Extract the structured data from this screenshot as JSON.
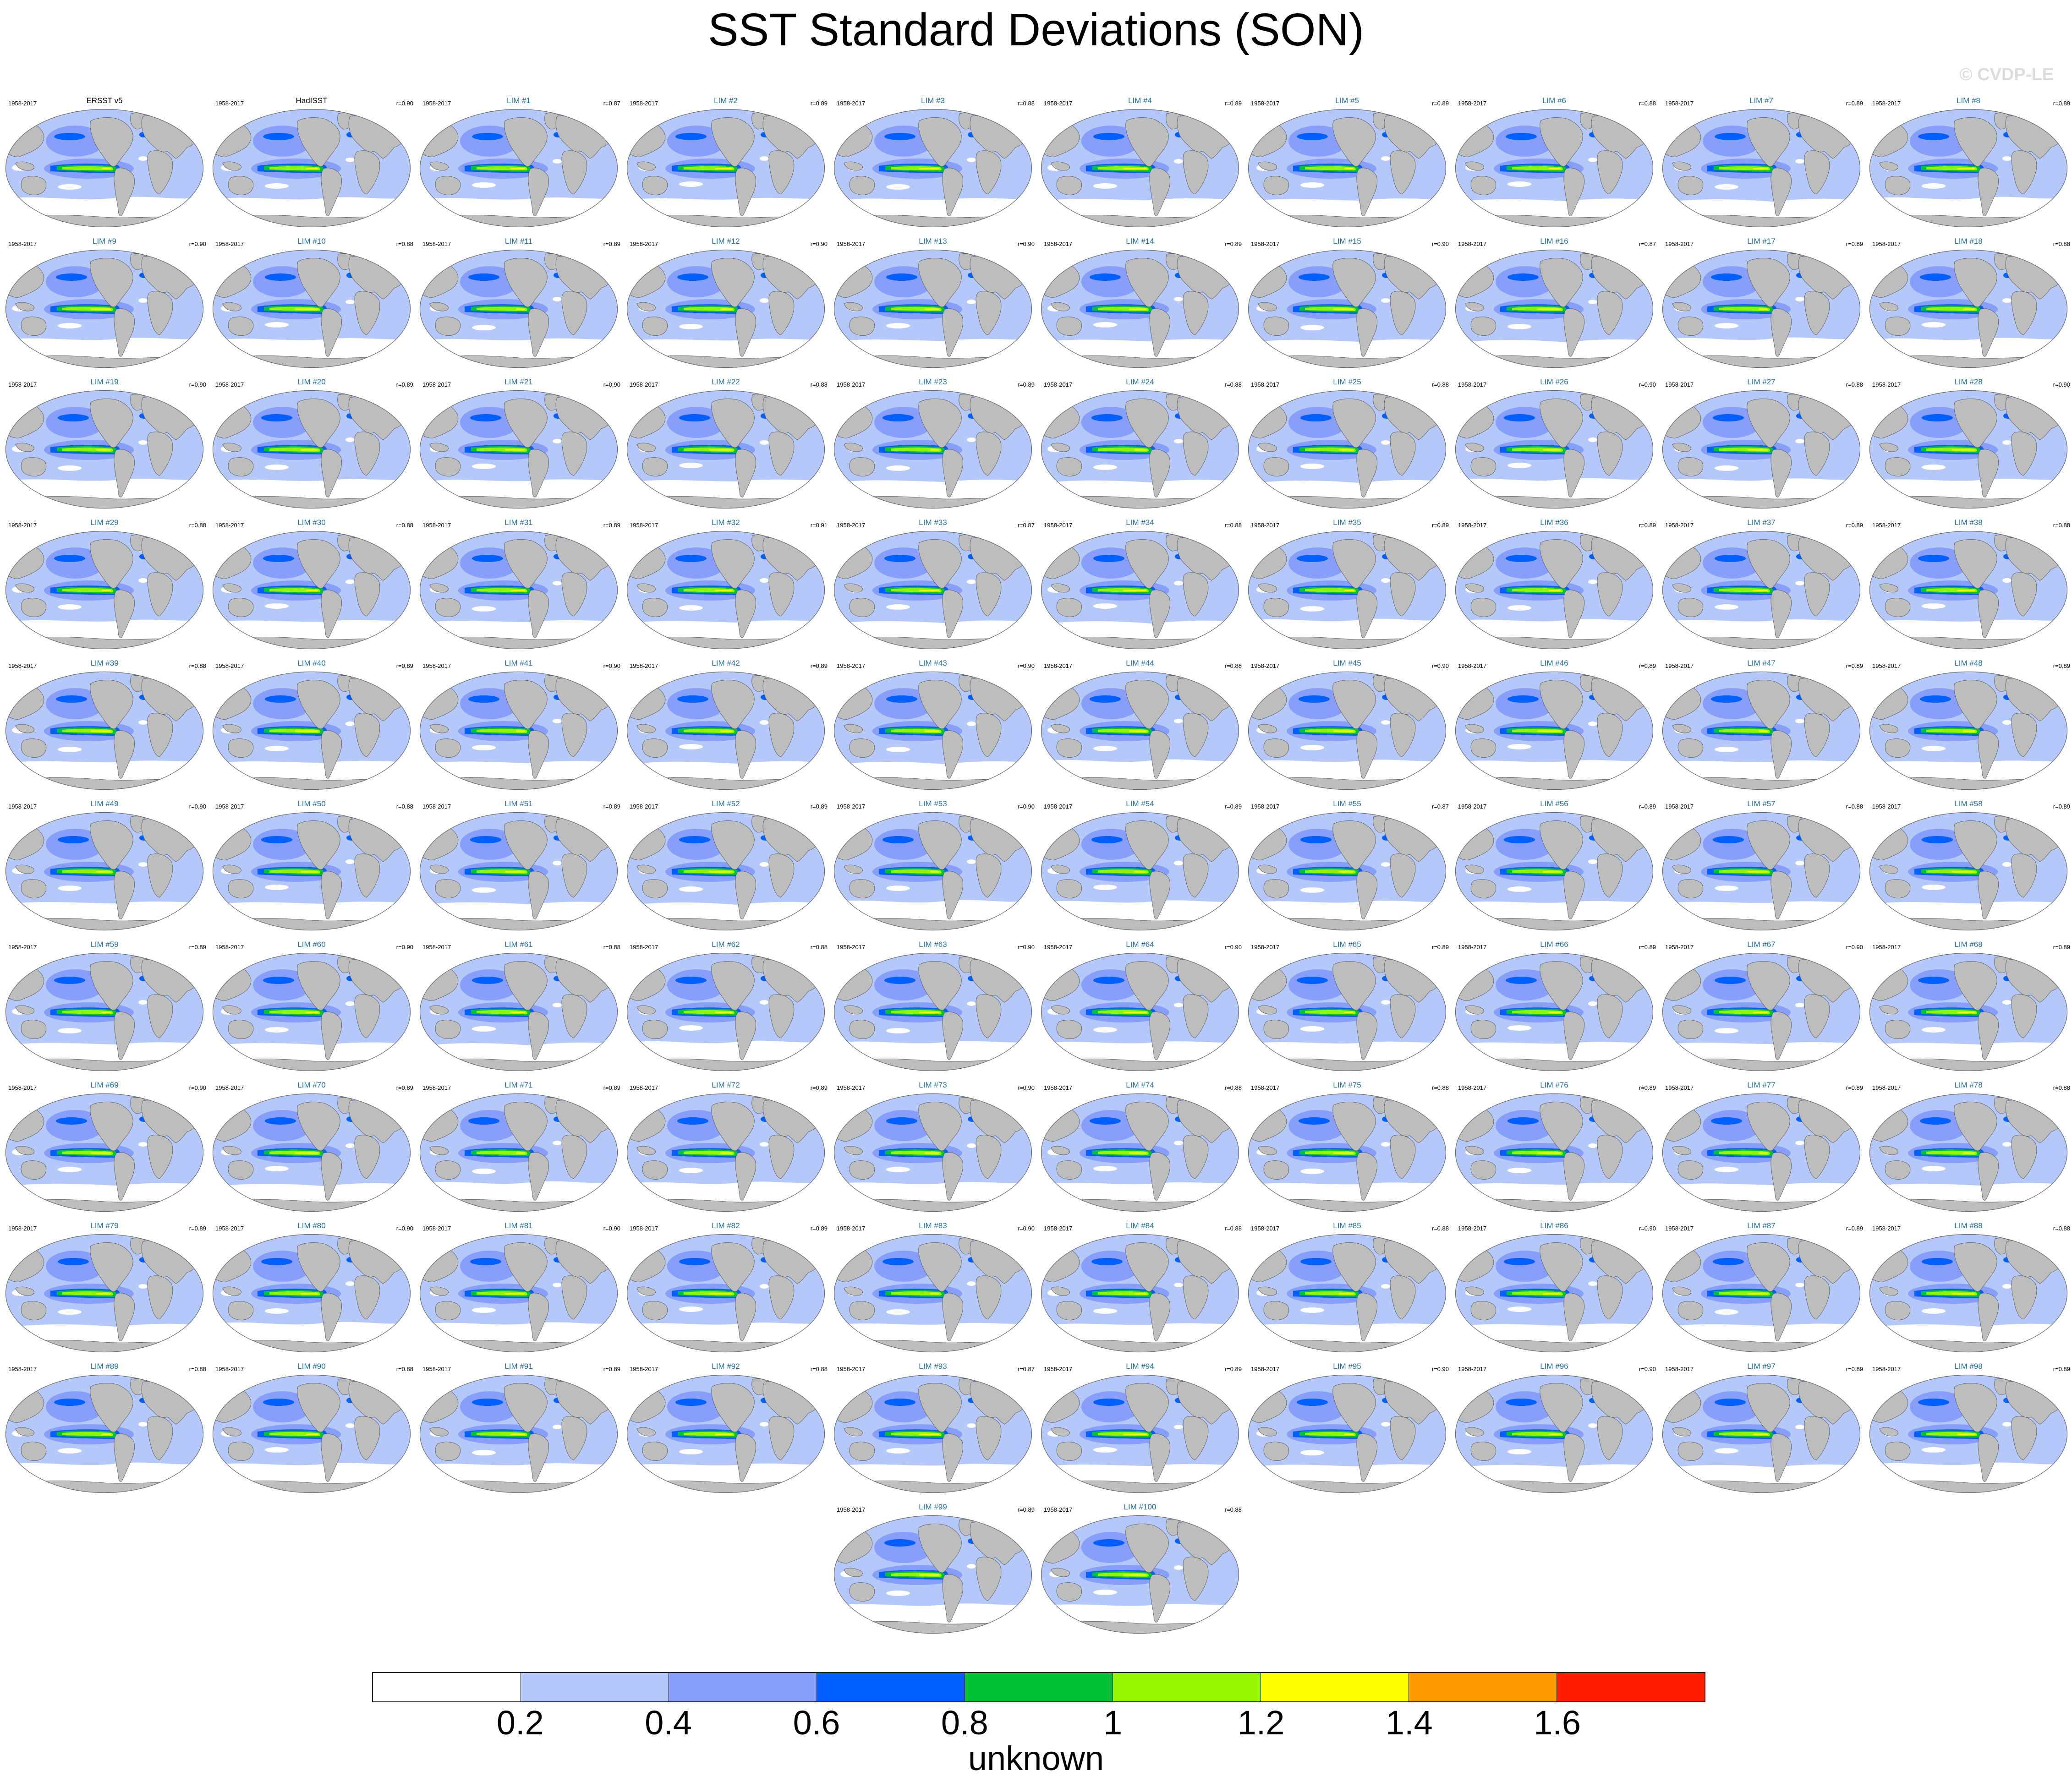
{
  "figure": {
    "title": "SST Standard Deviations (SON)",
    "watermark": "© CVDP-LE"
  },
  "chart_data": {
    "type": "heatmap",
    "title": "SST Standard Deviations (SON)",
    "layout": "small-multiples map grid, Robinson-like global projection",
    "panels": [
      {
        "name": "ERSST v5",
        "period": "1958-2017",
        "r": ""
      },
      {
        "name": "HadISST",
        "period": "1958-2017",
        "r": "r=0.90"
      },
      {
        "name": "LIM #1",
        "period": "1958-2017",
        "r": "r=0.87"
      },
      {
        "name": "LIM #2",
        "period": "1958-2017",
        "r": "r=0.89"
      },
      {
        "name": "LIM #3",
        "period": "1958-2017",
        "r": "r=0.88"
      },
      {
        "name": "LIM #4",
        "period": "1958-2017",
        "r": "r=0.89"
      },
      {
        "name": "LIM #5",
        "period": "1958-2017",
        "r": "r=0.89"
      },
      {
        "name": "LIM #6",
        "period": "1958-2017",
        "r": "r=0.88"
      },
      {
        "name": "LIM #7",
        "period": "1958-2017",
        "r": "r=0.89"
      },
      {
        "name": "LIM #8",
        "period": "1958-2017",
        "r": "r=0.89"
      },
      {
        "name": "LIM #9",
        "period": "1958-2017",
        "r": "r=0.90"
      },
      {
        "name": "LIM #10",
        "period": "1958-2017",
        "r": "r=0.88"
      },
      {
        "name": "LIM #11",
        "period": "1958-2017",
        "r": "r=0.89"
      },
      {
        "name": "LIM #12",
        "period": "1958-2017",
        "r": "r=0.90"
      },
      {
        "name": "LIM #13",
        "period": "1958-2017",
        "r": "r=0.90"
      },
      {
        "name": "LIM #14",
        "period": "1958-2017",
        "r": "r=0.89"
      },
      {
        "name": "LIM #15",
        "period": "1958-2017",
        "r": "r=0.90"
      },
      {
        "name": "LIM #16",
        "period": "1958-2017",
        "r": "r=0.87"
      },
      {
        "name": "LIM #17",
        "period": "1958-2017",
        "r": "r=0.89"
      },
      {
        "name": "LIM #18",
        "period": "1958-2017",
        "r": "r=0.88"
      },
      {
        "name": "LIM #19",
        "period": "1958-2017",
        "r": "r=0.90"
      },
      {
        "name": "LIM #20",
        "period": "1958-2017",
        "r": "r=0.89"
      },
      {
        "name": "LIM #21",
        "period": "1958-2017",
        "r": "r=0.90"
      },
      {
        "name": "LIM #22",
        "period": "1958-2017",
        "r": "r=0.88"
      },
      {
        "name": "LIM #23",
        "period": "1958-2017",
        "r": "r=0.89"
      },
      {
        "name": "LIM #24",
        "period": "1958-2017",
        "r": "r=0.88"
      },
      {
        "name": "LIM #25",
        "period": "1958-2017",
        "r": "r=0.88"
      },
      {
        "name": "LIM #26",
        "period": "1958-2017",
        "r": "r=0.90"
      },
      {
        "name": "LIM #27",
        "period": "1958-2017",
        "r": "r=0.88"
      },
      {
        "name": "LIM #28",
        "period": "1958-2017",
        "r": "r=0.90"
      },
      {
        "name": "LIM #29",
        "period": "1958-2017",
        "r": "r=0.88"
      },
      {
        "name": "LIM #30",
        "period": "1958-2017",
        "r": "r=0.88"
      },
      {
        "name": "LIM #31",
        "period": "1958-2017",
        "r": "r=0.89"
      },
      {
        "name": "LIM #32",
        "period": "1958-2017",
        "r": "r=0.91"
      },
      {
        "name": "LIM #33",
        "period": "1958-2017",
        "r": "r=0.87"
      },
      {
        "name": "LIM #34",
        "period": "1958-2017",
        "r": "r=0.88"
      },
      {
        "name": "LIM #35",
        "period": "1958-2017",
        "r": "r=0.89"
      },
      {
        "name": "LIM #36",
        "period": "1958-2017",
        "r": "r=0.89"
      },
      {
        "name": "LIM #37",
        "period": "1958-2017",
        "r": "r=0.89"
      },
      {
        "name": "LIM #38",
        "period": "1958-2017",
        "r": "r=0.88"
      },
      {
        "name": "LIM #39",
        "period": "1958-2017",
        "r": "r=0.88"
      },
      {
        "name": "LIM #40",
        "period": "1958-2017",
        "r": "r=0.89"
      },
      {
        "name": "LIM #41",
        "period": "1958-2017",
        "r": "r=0.90"
      },
      {
        "name": "LIM #42",
        "period": "1958-2017",
        "r": "r=0.89"
      },
      {
        "name": "LIM #43",
        "period": "1958-2017",
        "r": "r=0.90"
      },
      {
        "name": "LIM #44",
        "period": "1958-2017",
        "r": "r=0.88"
      },
      {
        "name": "LIM #45",
        "period": "1958-2017",
        "r": "r=0.90"
      },
      {
        "name": "LIM #46",
        "period": "1958-2017",
        "r": "r=0.89"
      },
      {
        "name": "LIM #47",
        "period": "1958-2017",
        "r": "r=0.89"
      },
      {
        "name": "LIM #48",
        "period": "1958-2017",
        "r": "r=0.89"
      },
      {
        "name": "LIM #49",
        "period": "1958-2017",
        "r": "r=0.90"
      },
      {
        "name": "LIM #50",
        "period": "1958-2017",
        "r": "r=0.88"
      },
      {
        "name": "LIM #51",
        "period": "1958-2017",
        "r": "r=0.89"
      },
      {
        "name": "LIM #52",
        "period": "1958-2017",
        "r": "r=0.89"
      },
      {
        "name": "LIM #53",
        "period": "1958-2017",
        "r": "r=0.90"
      },
      {
        "name": "LIM #54",
        "period": "1958-2017",
        "r": "r=0.89"
      },
      {
        "name": "LIM #55",
        "period": "1958-2017",
        "r": "r=0.87"
      },
      {
        "name": "LIM #56",
        "period": "1958-2017",
        "r": "r=0.89"
      },
      {
        "name": "LIM #57",
        "period": "1958-2017",
        "r": "r=0.88"
      },
      {
        "name": "LIM #58",
        "period": "1958-2017",
        "r": "r=0.89"
      },
      {
        "name": "LIM #59",
        "period": "1958-2017",
        "r": "r=0.89"
      },
      {
        "name": "LIM #60",
        "period": "1958-2017",
        "r": "r=0.90"
      },
      {
        "name": "LIM #61",
        "period": "1958-2017",
        "r": "r=0.88"
      },
      {
        "name": "LIM #62",
        "period": "1958-2017",
        "r": "r=0.88"
      },
      {
        "name": "LIM #63",
        "period": "1958-2017",
        "r": "r=0.90"
      },
      {
        "name": "LIM #64",
        "period": "1958-2017",
        "r": "r=0.90"
      },
      {
        "name": "LIM #65",
        "period": "1958-2017",
        "r": "r=0.89"
      },
      {
        "name": "LIM #66",
        "period": "1958-2017",
        "r": "r=0.89"
      },
      {
        "name": "LIM #67",
        "period": "1958-2017",
        "r": "r=0.90"
      },
      {
        "name": "LIM #68",
        "period": "1958-2017",
        "r": "r=0.89"
      },
      {
        "name": "LIM #69",
        "period": "1958-2017",
        "r": "r=0.90"
      },
      {
        "name": "LIM #70",
        "period": "1958-2017",
        "r": "r=0.89"
      },
      {
        "name": "LIM #71",
        "period": "1958-2017",
        "r": "r=0.89"
      },
      {
        "name": "LIM #72",
        "period": "1958-2017",
        "r": "r=0.89"
      },
      {
        "name": "LIM #73",
        "period": "1958-2017",
        "r": "r=0.90"
      },
      {
        "name": "LIM #74",
        "period": "1958-2017",
        "r": "r=0.88"
      },
      {
        "name": "LIM #75",
        "period": "1958-2017",
        "r": "r=0.88"
      },
      {
        "name": "LIM #76",
        "period": "1958-2017",
        "r": "r=0.89"
      },
      {
        "name": "LIM #77",
        "period": "1958-2017",
        "r": "r=0.89"
      },
      {
        "name": "LIM #78",
        "period": "1958-2017",
        "r": "r=0.88"
      },
      {
        "name": "LIM #79",
        "period": "1958-2017",
        "r": "r=0.89"
      },
      {
        "name": "LIM #80",
        "period": "1958-2017",
        "r": "r=0.90"
      },
      {
        "name": "LIM #81",
        "period": "1958-2017",
        "r": "r=0.90"
      },
      {
        "name": "LIM #82",
        "period": "1958-2017",
        "r": "r=0.89"
      },
      {
        "name": "LIM #83",
        "period": "1958-2017",
        "r": "r=0.90"
      },
      {
        "name": "LIM #84",
        "period": "1958-2017",
        "r": "r=0.88"
      },
      {
        "name": "LIM #85",
        "period": "1958-2017",
        "r": "r=0.88"
      },
      {
        "name": "LIM #86",
        "period": "1958-2017",
        "r": "r=0.90"
      },
      {
        "name": "LIM #87",
        "period": "1958-2017",
        "r": "r=0.89"
      },
      {
        "name": "LIM #88",
        "period": "1958-2017",
        "r": "r=0.88"
      },
      {
        "name": "LIM #89",
        "period": "1958-2017",
        "r": "r=0.88"
      },
      {
        "name": "LIM #90",
        "period": "1958-2017",
        "r": "r=0.88"
      },
      {
        "name": "LIM #91",
        "period": "1958-2017",
        "r": "r=0.89"
      },
      {
        "name": "LIM #92",
        "period": "1958-2017",
        "r": "r=0.88"
      },
      {
        "name": "LIM #93",
        "period": "1958-2017",
        "r": "r=0.87"
      },
      {
        "name": "LIM #94",
        "period": "1958-2017",
        "r": "r=0.89"
      },
      {
        "name": "LIM #95",
        "period": "1958-2017",
        "r": "r=0.90"
      },
      {
        "name": "LIM #96",
        "period": "1958-2017",
        "r": "r=0.90"
      },
      {
        "name": "LIM #97",
        "period": "1958-2017",
        "r": "r=0.89"
      },
      {
        "name": "LIM #98",
        "period": "1958-2017",
        "r": "r=0.89"
      },
      {
        "name": "LIM #99",
        "period": "1958-2017",
        "r": "r=0.89"
      },
      {
        "name": "LIM #100",
        "period": "1958-2017",
        "r": "r=0.88"
      }
    ],
    "colorbar": {
      "levels": [
        0.2,
        0.4,
        0.6,
        0.8,
        1.0,
        1.2,
        1.4,
        1.6
      ],
      "tick_labels": [
        "0.2",
        "0.4",
        "0.6",
        "0.8",
        "1",
        "1.2",
        "1.4",
        "1.6"
      ],
      "colors": [
        "#ffffff",
        "#b4c8fa",
        "#879ffa",
        "#0060ff",
        "#00c234",
        "#95f500",
        "#ffff00",
        "#ff9900",
        "#ff1e00"
      ],
      "units_label": "unknown"
    },
    "map_colors": {
      "land": "#bdbdbd",
      "coast": "#555555",
      "outline": "#666666"
    }
  }
}
